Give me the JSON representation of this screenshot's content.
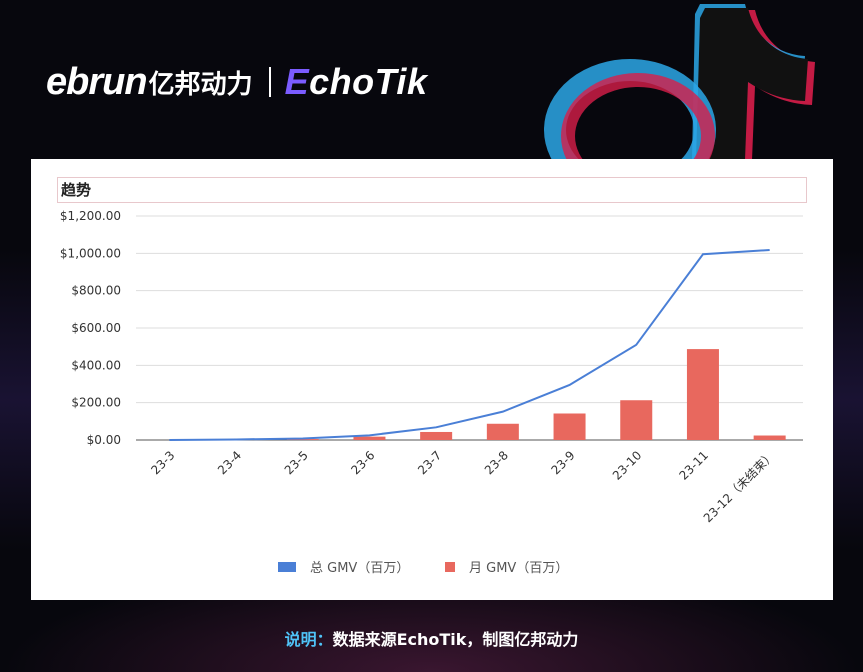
{
  "header": {
    "logo_ebrun": "ebrun",
    "logo_cn": "亿邦动力",
    "logo_echo_e": "E",
    "logo_echo_rest": "choTik"
  },
  "chart_data": {
    "type": "bar+line",
    "title": "趋势",
    "categories": [
      "23-3",
      "23-4",
      "23-5",
      "23-6",
      "23-7",
      "23-8",
      "23-9",
      "23-10",
      "23-11",
      "23-12（未结束）"
    ],
    "series": [
      {
        "name": "总 GMV（百万）",
        "kind": "line",
        "color": "#4a7fd6",
        "values": [
          0,
          3,
          8,
          25,
          68,
          152,
          295,
          510,
          995,
          1018
        ]
      },
      {
        "name": "月 GMV（百万）",
        "kind": "bar",
        "color": "#e8685e",
        "values": [
          0,
          3,
          5,
          18,
          43,
          87,
          142,
          213,
          487,
          24
        ]
      }
    ],
    "ylim": [
      0,
      1200
    ],
    "yticks": [
      0,
      200,
      400,
      600,
      800,
      1000,
      1200
    ],
    "ytick_labels": [
      "$0.00",
      "$200.00",
      "$400.00",
      "$600.00",
      "$800.00",
      "$1,000.00",
      "$1,200.00"
    ],
    "grid": true,
    "legend": "bottom"
  },
  "caption": {
    "label": "说明：",
    "text": "数据来源EchoTik，制图亿邦动力"
  }
}
